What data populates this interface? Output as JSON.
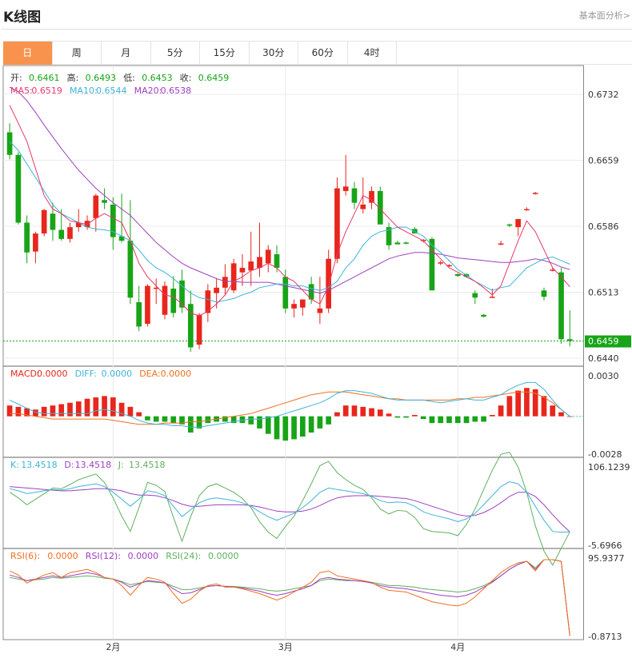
{
  "header": {
    "title": "K线图",
    "link": "基本面分析>"
  },
  "tabs": [
    {
      "label": "日",
      "active": true
    },
    {
      "label": "周"
    },
    {
      "label": "月"
    },
    {
      "label": "5分"
    },
    {
      "label": "15分"
    },
    {
      "label": "30分"
    },
    {
      "label": "60分"
    },
    {
      "label": "4时"
    }
  ],
  "colors": {
    "up": "#e8261c",
    "down": "#17a417",
    "ma5": "#e8386a",
    "ma10": "#3fb4d8",
    "ma20": "#a040c0",
    "macd": "#e8261c",
    "diff": "#3fb4d8",
    "dea": "#f07020",
    "k": "#3fb4d8",
    "d": "#a040c0",
    "j": "#60b060",
    "rsi6": "#f07020",
    "rsi12": "#a040c0",
    "rsi24": "#60b060"
  },
  "info": {
    "ohlc": [
      {
        "label": "开:",
        "value": "0.6461"
      },
      {
        "label": "高:",
        "value": "0.6493"
      },
      {
        "label": "低:",
        "value": "0.6453"
      },
      {
        "label": "收:",
        "value": "0.6459"
      }
    ],
    "ma": [
      {
        "label": "MA5:",
        "value": "0.6519"
      },
      {
        "label": "MA10:",
        "value": "0.6544"
      },
      {
        "label": "MA20:",
        "value": "0.6538"
      }
    ],
    "macd": [
      {
        "label": "MACD:",
        "value": "0.0000"
      },
      {
        "label": "DIFF:",
        "value": "0.0000"
      },
      {
        "label": "DEA:",
        "value": "0.0000"
      }
    ],
    "kdj": [
      {
        "label": "K:",
        "value": "13.4518"
      },
      {
        "label": "D:",
        "value": "13.4518"
      },
      {
        "label": "J:",
        "value": "13.4518"
      }
    ],
    "rsi": [
      {
        "label": "RSI(6):",
        "value": "0.0000"
      },
      {
        "label": "RSI(12):",
        "value": "0.0000"
      },
      {
        "label": "RSI(24):",
        "value": "0.0000"
      }
    ]
  },
  "chart_data": {
    "type": "candlestick",
    "price_axis": {
      "ylim": [
        0.644,
        0.6732
      ],
      "ticks": [
        "0.6732",
        "0.6659",
        "0.6586",
        "0.6513",
        "0.6440"
      ],
      "last": "0.6459"
    },
    "macd_axis": {
      "ylim": [
        -0.0028,
        0.003
      ],
      "ticks": [
        "0.0030",
        "-0.0028"
      ]
    },
    "kdj_axis": {
      "ylim": [
        -5.6966,
        106.1239
      ],
      "ticks": [
        "106.1239",
        "-5.6966"
      ]
    },
    "rsi_axis": {
      "ylim": [
        -0.8713,
        95.9377
      ],
      "ticks": [
        "95.9377",
        "-0.8713"
      ]
    },
    "x_labels": [
      {
        "label": "2月",
        "index": 12
      },
      {
        "label": "3月",
        "index": 32
      },
      {
        "label": "4月",
        "index": 52
      }
    ],
    "candles": [
      [
        0.669,
        0.67,
        0.666,
        0.6665
      ],
      [
        0.6665,
        0.6668,
        0.6588,
        0.659
      ],
      [
        0.659,
        0.6598,
        0.6545,
        0.6557
      ],
      [
        0.6558,
        0.658,
        0.6545,
        0.6578
      ],
      [
        0.6578,
        0.6605,
        0.6575,
        0.6604
      ],
      [
        0.66,
        0.6612,
        0.657,
        0.6582
      ],
      [
        0.6582,
        0.6605,
        0.657,
        0.6572
      ],
      [
        0.6572,
        0.659,
        0.6568,
        0.6585
      ],
      [
        0.6585,
        0.6605,
        0.658,
        0.659
      ],
      [
        0.6585,
        0.6598,
        0.6582,
        0.6592
      ],
      [
        0.6595,
        0.6622,
        0.658,
        0.662
      ],
      [
        0.6615,
        0.6628,
        0.6605,
        0.6612
      ],
      [
        0.661,
        0.6618,
        0.656,
        0.6574
      ],
      [
        0.6575,
        0.6622,
        0.6568,
        0.657
      ],
      [
        0.657,
        0.6615,
        0.65,
        0.6507
      ],
      [
        0.6502,
        0.652,
        0.647,
        0.6475
      ],
      [
        0.6478,
        0.6522,
        0.6475,
        0.652
      ],
      [
        0.6518,
        0.6528,
        0.65,
        0.6518
      ],
      [
        0.6488,
        0.6525,
        0.6483,
        0.652
      ],
      [
        0.6517,
        0.6531,
        0.6485,
        0.649
      ],
      [
        0.6526,
        0.6538,
        0.649,
        0.6496
      ],
      [
        0.65,
        0.6515,
        0.6447,
        0.6452
      ],
      [
        0.6455,
        0.649,
        0.645,
        0.6488
      ],
      [
        0.649,
        0.6522,
        0.648,
        0.6515
      ],
      [
        0.6512,
        0.6528,
        0.6495,
        0.6518
      ],
      [
        0.6518,
        0.6544,
        0.651,
        0.653
      ],
      [
        0.6515,
        0.655,
        0.6512,
        0.6545
      ],
      [
        0.6535,
        0.6555,
        0.652,
        0.654
      ],
      [
        0.6537,
        0.658,
        0.652,
        0.6547
      ],
      [
        0.654,
        0.659,
        0.653,
        0.6552
      ],
      [
        0.6545,
        0.6565,
        0.6535,
        0.656
      ],
      [
        0.6555,
        0.6565,
        0.6535,
        0.654
      ],
      [
        0.653,
        0.6538,
        0.649,
        0.6495
      ],
      [
        0.6495,
        0.6505,
        0.6485,
        0.65
      ],
      [
        0.6496,
        0.6505,
        0.6487,
        0.6505
      ],
      [
        0.6522,
        0.653,
        0.65,
        0.6505
      ],
      [
        0.649,
        0.653,
        0.6478,
        0.6495
      ],
      [
        0.6495,
        0.656,
        0.649,
        0.655
      ],
      [
        0.655,
        0.664,
        0.6545,
        0.6628
      ],
      [
        0.6625,
        0.6665,
        0.662,
        0.663
      ],
      [
        0.6628,
        0.6635,
        0.6605,
        0.6612
      ],
      [
        0.6605,
        0.664,
        0.66,
        0.661
      ],
      [
        0.6612,
        0.663,
        0.6605,
        0.6625
      ],
      [
        0.6625,
        0.663,
        0.659,
        0.6588
      ],
      [
        0.6585,
        0.659,
        0.656,
        0.6565
      ],
      [
        0.6568,
        0.657,
        0.6566,
        0.6566
      ],
      [
        0.6568,
        0.6569,
        0.6566,
        0.6567
      ],
      [
        0.6583,
        0.6585,
        0.6578,
        0.6578
      ],
      [
        0.657,
        0.6572,
        0.6568,
        0.6571
      ],
      [
        0.6572,
        0.6574,
        0.6515,
        0.6515
      ],
      [
        0.6546,
        0.6548,
        0.6543,
        0.6546
      ],
      [
        0.6542,
        0.6544,
        0.6541,
        0.6543
      ],
      [
        0.6533,
        0.6534,
        0.653,
        0.6531
      ],
      [
        0.6533,
        0.6534,
        0.6529,
        0.653
      ],
      [
        0.6512,
        0.6515,
        0.65,
        0.6507
      ],
      [
        0.6488,
        0.6489,
        0.6485,
        0.6486
      ],
      [
        0.6508,
        0.6517,
        0.6507,
        0.6508
      ],
      [
        0.6567,
        0.657,
        0.6565,
        0.6567
      ],
      [
        0.6588,
        0.6589,
        0.6585,
        0.6587
      ],
      [
        0.6585,
        0.6592,
        0.6575,
        0.6594
      ],
      [
        0.6605,
        0.6607,
        0.6603,
        0.6605
      ],
      [
        0.6622,
        0.6624,
        0.6621,
        0.6623
      ],
      [
        0.6515,
        0.6518,
        0.6504,
        0.6508
      ],
      [
        0.6538,
        0.654,
        0.6536,
        0.6538
      ],
      [
        0.6535,
        0.654,
        0.6456,
        0.6461
      ],
      [
        0.6461,
        0.6493,
        0.6453,
        0.6459
      ]
    ],
    "ma5": [
      0.672,
      0.67,
      0.668,
      0.665,
      0.662,
      0.6605,
      0.66,
      0.6592,
      0.659,
      0.6588,
      0.6595,
      0.66,
      0.6595,
      0.659,
      0.657,
      0.6545,
      0.653,
      0.652,
      0.651,
      0.6508,
      0.65,
      0.649,
      0.6487,
      0.6492,
      0.65,
      0.651,
      0.6525,
      0.653,
      0.6537,
      0.654,
      0.6545,
      0.654,
      0.653,
      0.6525,
      0.6515,
      0.6505,
      0.65,
      0.652,
      0.6555,
      0.658,
      0.66,
      0.662,
      0.6615,
      0.6605,
      0.6595,
      0.6585,
      0.658,
      0.6575,
      0.657,
      0.656,
      0.655,
      0.654,
      0.6535,
      0.653,
      0.6525,
      0.6518,
      0.651,
      0.652,
      0.6545,
      0.657,
      0.6592,
      0.658,
      0.656,
      0.654,
      0.653,
      0.6519
    ],
    "ma10": [
      0.668,
      0.667,
      0.6655,
      0.664,
      0.6625,
      0.661,
      0.66,
      0.6595,
      0.659,
      0.6585,
      0.6583,
      0.6582,
      0.658,
      0.6575,
      0.657,
      0.656,
      0.6548,
      0.654,
      0.6535,
      0.6528,
      0.652,
      0.6512,
      0.6507,
      0.6505,
      0.6502,
      0.6504,
      0.6506,
      0.651,
      0.6513,
      0.6518,
      0.652,
      0.6522,
      0.6522,
      0.652,
      0.652,
      0.6517,
      0.6515,
      0.6518,
      0.6525,
      0.654,
      0.655,
      0.6565,
      0.6575,
      0.658,
      0.6582,
      0.6585,
      0.6585,
      0.658,
      0.6575,
      0.6565,
      0.6557,
      0.6548,
      0.6538,
      0.6532,
      0.6525,
      0.652,
      0.6515,
      0.6518,
      0.652,
      0.653,
      0.654,
      0.6545,
      0.655,
      0.6552,
      0.6548,
      0.6544
    ],
    "ma20": [
      0.674,
      0.6735,
      0.6725,
      0.6712,
      0.6698,
      0.6685,
      0.6672,
      0.666,
      0.6648,
      0.6638,
      0.6628,
      0.662,
      0.6612,
      0.6605,
      0.6598,
      0.6588,
      0.6578,
      0.6568,
      0.656,
      0.6552,
      0.6545,
      0.654,
      0.6536,
      0.6532,
      0.6528,
      0.6525,
      0.6525,
      0.6524,
      0.6524,
      0.6524,
      0.6524,
      0.6522,
      0.652,
      0.6518,
      0.6516,
      0.6514,
      0.6512,
      0.6515,
      0.652,
      0.6525,
      0.653,
      0.6535,
      0.654,
      0.6545,
      0.655,
      0.6553,
      0.6555,
      0.6557,
      0.6557,
      0.6556,
      0.6555,
      0.6553,
      0.6551,
      0.655,
      0.6549,
      0.6548,
      0.6547,
      0.6546,
      0.6546,
      0.6547,
      0.6548,
      0.655,
      0.6548,
      0.6545,
      0.6541,
      0.6538
    ],
    "macd_hist": [
      0.0008,
      0.0007,
      0.0006,
      0.0005,
      0.0007,
      0.0008,
      0.0009,
      0.001,
      0.0011,
      0.0013,
      0.0014,
      0.0015,
      0.0014,
      0.001,
      0.0007,
      0.0003,
      -0.0003,
      -0.0004,
      -0.0004,
      -0.0005,
      -0.0006,
      -0.0012,
      -0.0009,
      -0.0005,
      -0.0004,
      -0.0004,
      -0.0005,
      -0.0005,
      -0.0006,
      -0.0009,
      -0.0013,
      -0.0017,
      -0.0018,
      -0.0017,
      -0.0015,
      -0.0012,
      -0.0009,
      -0.0006,
      0.0003,
      0.0008,
      0.0008,
      0.0007,
      0.0006,
      0.0005,
      0.0002,
      -0.0001,
      -0.0001,
      0.0001,
      -0.0002,
      -0.0005,
      -0.0005,
      -0.0005,
      -0.0005,
      -0.0005,
      -0.0004,
      -0.0004,
      0.0001,
      0.0008,
      0.0015,
      0.0019,
      0.0021,
      0.002,
      0.0015,
      0.0008,
      0.0003,
      0.0
    ],
    "diff": [
      0.0012,
      0.0009,
      0.0006,
      0.0003,
      0.0002,
      0.0002,
      0.0002,
      0.0002,
      0.0002,
      0.0002,
      0.0004,
      0.0005,
      0.0004,
      0.0002,
      0.0,
      -0.0003,
      -0.0005,
      -0.0006,
      -0.0006,
      -0.0007,
      -0.0007,
      -0.0008,
      -0.0008,
      -0.0007,
      -0.0006,
      -0.0005,
      -0.0004,
      -0.0003,
      -0.0002,
      -0.0002,
      -0.0001,
      0.0,
      0.0002,
      0.0004,
      0.0006,
      0.0008,
      0.001,
      0.0013,
      0.0017,
      0.0019,
      0.0019,
      0.0018,
      0.0017,
      0.0015,
      0.0013,
      0.0012,
      0.0012,
      0.0012,
      0.0012,
      0.0011,
      0.001,
      0.0011,
      0.0012,
      0.0013,
      0.0012,
      0.0012,
      0.0014,
      0.0016,
      0.002,
      0.0023,
      0.0025,
      0.0025,
      0.002,
      0.0012,
      0.0005,
      0.0
    ],
    "dea": [
      0.0002,
      0.0002,
      0.0001,
      0.0,
      -0.0001,
      -0.0002,
      -0.0002,
      -0.0002,
      -0.0002,
      -0.0002,
      -0.0002,
      -0.0002,
      -0.0003,
      -0.0004,
      -0.0005,
      -0.0006,
      -0.0006,
      -0.0006,
      -0.0005,
      -0.0005,
      -0.0005,
      -0.0004,
      -0.0004,
      -0.0003,
      -0.0002,
      -0.0001,
      0.0,
      0.0001,
      0.0002,
      0.0004,
      0.0006,
      0.0008,
      0.001,
      0.0012,
      0.0014,
      0.0016,
      0.0017,
      0.0018,
      0.0018,
      0.0018,
      0.0017,
      0.0016,
      0.0015,
      0.0014,
      0.0013,
      0.0013,
      0.0012,
      0.0012,
      0.0012,
      0.0012,
      0.0012,
      0.0012,
      0.0013,
      0.0013,
      0.0014,
      0.0014,
      0.0015,
      0.0016,
      0.0017,
      0.0018,
      0.0018,
      0.0017,
      0.0014,
      0.001,
      0.0005,
      0.0
    ],
    "k": [
      75,
      72,
      68,
      70,
      72,
      74,
      73,
      75,
      78,
      80,
      82,
      78,
      70,
      60,
      50,
      60,
      72,
      70,
      65,
      50,
      35,
      45,
      55,
      60,
      62,
      60,
      58,
      55,
      50,
      42,
      35,
      30,
      35,
      40,
      48,
      58,
      70,
      76,
      74,
      72,
      70,
      68,
      64,
      58,
      55,
      56,
      55,
      50,
      42,
      38,
      35,
      32,
      28,
      32,
      40,
      52,
      65,
      78,
      85,
      82,
      70,
      50,
      30,
      14,
      13,
      13.5
    ],
    "d": [
      78,
      77,
      76,
      75,
      74,
      73,
      72,
      72,
      73,
      74,
      75,
      75,
      74,
      72,
      68,
      66,
      66,
      65,
      62,
      58,
      53,
      50,
      50,
      51,
      52,
      52,
      52,
      52,
      51,
      49,
      46,
      43,
      42,
      42,
      43,
      46,
      51,
      57,
      62,
      64,
      65,
      65,
      65,
      64,
      63,
      62,
      61,
      58,
      54,
      50,
      46,
      42,
      38,
      36,
      37,
      41,
      47,
      55,
      64,
      70,
      70,
      64,
      52,
      38,
      25,
      13.5
    ],
    "j": [
      70,
      62,
      52,
      60,
      68,
      76,
      75,
      81,
      88,
      92,
      96,
      84,
      62,
      36,
      14,
      48,
      84,
      80,
      71,
      34,
      0,
      35,
      65,
      78,
      82,
      76,
      70,
      61,
      48,
      28,
      13,
      4,
      21,
      36,
      58,
      82,
      108,
      114,
      98,
      88,
      80,
      74,
      62,
      46,
      39,
      44,
      43,
      34,
      18,
      14,
      13,
      12,
      8,
      24,
      46,
      74,
      101,
      124,
      127,
      106,
      70,
      22,
      -14,
      -34,
      -10,
      13.5
    ],
    "rsi6": [
      80,
      75,
      65,
      70,
      75,
      78,
      72,
      78,
      80,
      82,
      78,
      72,
      70,
      62,
      50,
      62,
      72,
      70,
      66,
      52,
      40,
      45,
      55,
      62,
      64,
      60,
      60,
      58,
      55,
      52,
      48,
      44,
      48,
      54,
      60,
      66,
      78,
      80,
      74,
      72,
      70,
      68,
      66,
      60,
      56,
      55,
      54,
      50,
      46,
      42,
      40,
      38,
      37,
      40,
      48,
      58,
      68,
      78,
      85,
      90,
      92,
      80,
      94,
      94,
      92,
      0
    ],
    "rsi12": [
      75,
      72,
      68,
      70,
      72,
      74,
      72,
      74,
      76,
      78,
      76,
      72,
      70,
      66,
      60,
      64,
      68,
      67,
      65,
      58,
      52,
      53,
      57,
      61,
      62,
      61,
      60,
      59,
      57,
      55,
      52,
      50,
      52,
      55,
      58,
      62,
      70,
      72,
      70,
      69,
      68,
      67,
      65,
      62,
      60,
      59,
      58,
      56,
      54,
      52,
      50,
      49,
      48,
      50,
      54,
      60,
      66,
      74,
      82,
      88,
      92,
      82,
      94,
      94,
      92,
      0
    ],
    "rsi24": [
      72,
      70,
      68,
      69,
      70,
      72,
      71,
      72,
      73,
      74,
      73,
      71,
      70,
      67,
      63,
      65,
      67,
      66,
      65,
      61,
      57,
      57,
      59,
      61,
      62,
      61,
      61,
      60,
      59,
      58,
      56,
      55,
      56,
      58,
      60,
      62,
      68,
      70,
      69,
      68,
      68,
      67,
      66,
      64,
      62,
      62,
      61,
      60,
      58,
      57,
      56,
      55,
      54,
      55,
      58,
      62,
      67,
      74,
      82,
      88,
      92,
      84,
      94,
      94,
      92,
      0
    ]
  }
}
